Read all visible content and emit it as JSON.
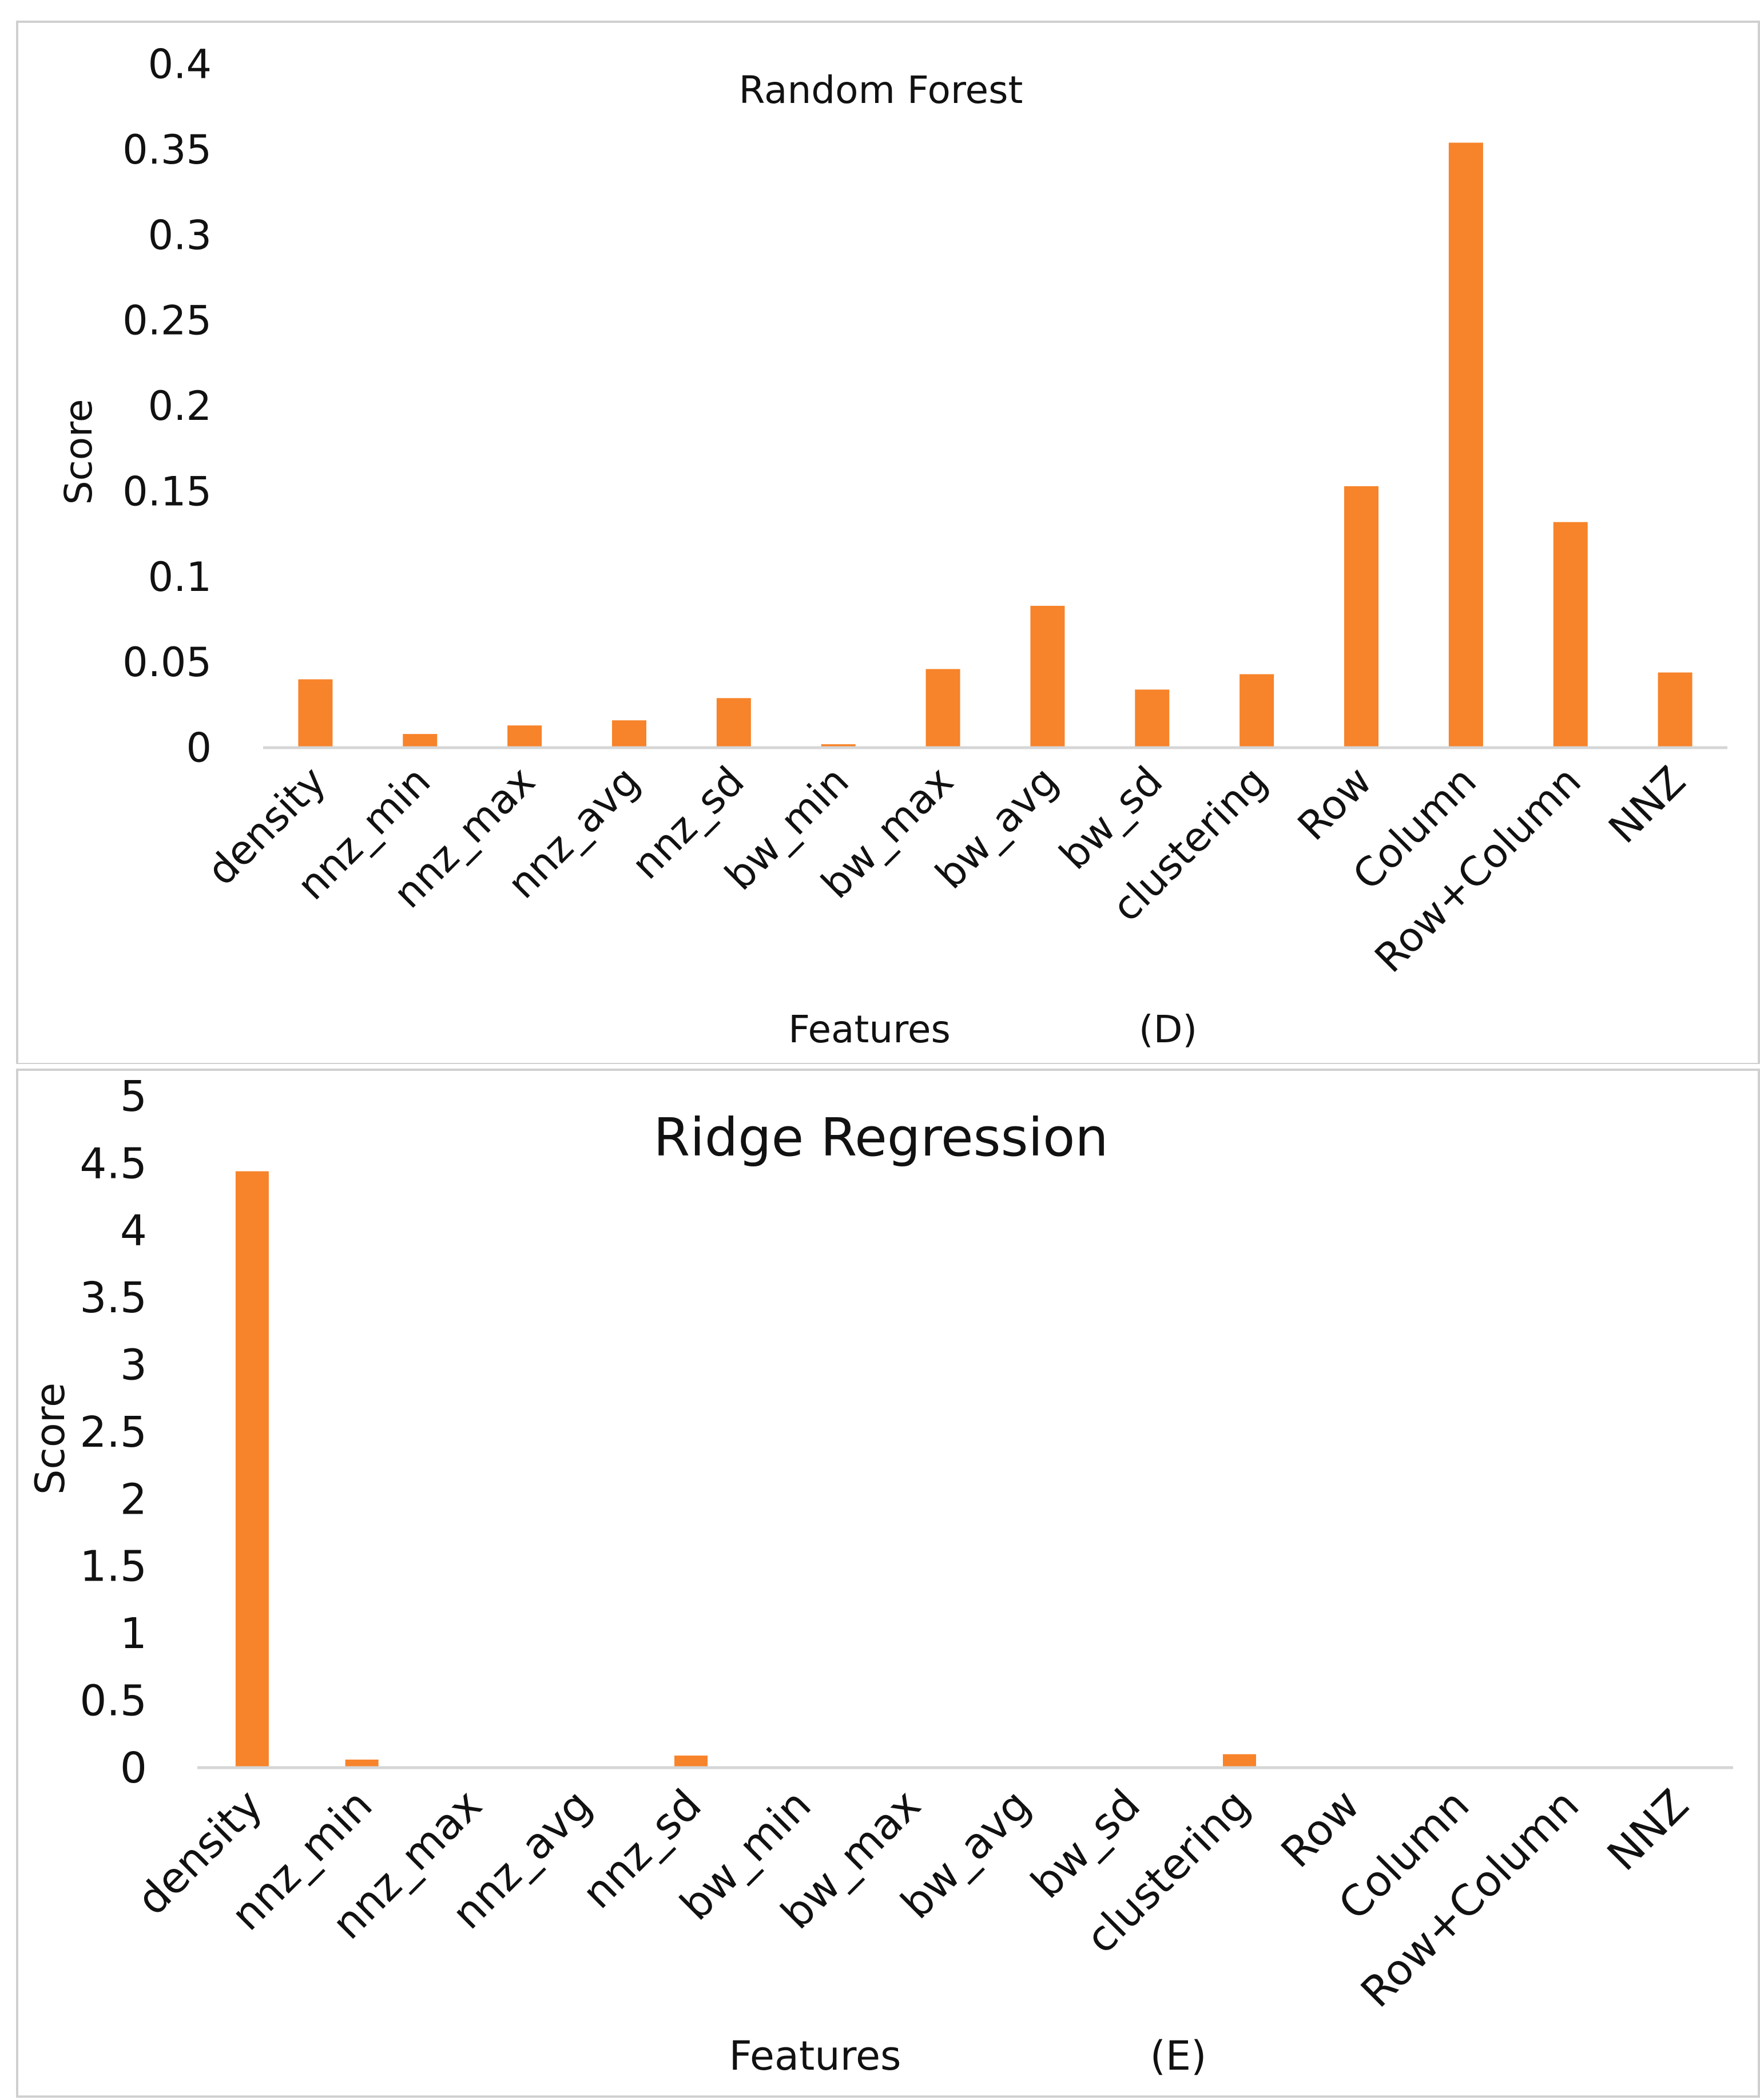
{
  "chart_data": [
    {
      "type": "bar",
      "title": "Random Forest",
      "panel_label": "(D)",
      "xlabel": "Features",
      "ylabel": "Score",
      "ylim": [
        0,
        0.4
      ],
      "yticks": [
        0,
        0.05,
        0.1,
        0.15,
        0.2,
        0.25,
        0.3,
        0.35,
        0.4
      ],
      "ytick_labels": [
        "0",
        "0.05",
        "0.1",
        "0.15",
        "0.2",
        "0.25",
        "0.3",
        "0.35",
        "0.4"
      ],
      "grid": false,
      "bar_color": "#f7832a",
      "categories": [
        "density",
        "nnz_min",
        "nnz_max",
        "nnz_avg",
        "nnz_sd",
        "bw_min",
        "bw_max",
        "bw_avg",
        "bw_sd",
        "clustering",
        "Row",
        "Column",
        "Row+Column",
        "NNZ"
      ],
      "values": [
        0.04,
        0.008,
        0.013,
        0.016,
        0.029,
        0.002,
        0.046,
        0.083,
        0.034,
        0.043,
        0.153,
        0.354,
        0.132,
        0.044
      ]
    },
    {
      "type": "bar",
      "title": "Ridge Regression",
      "panel_label": "(E)",
      "xlabel": "Features",
      "ylabel": "Score",
      "ylim": [
        0,
        5
      ],
      "yticks": [
        0,
        0.5,
        1,
        1.5,
        2,
        2.5,
        3,
        3.5,
        4,
        4.5,
        5
      ],
      "ytick_labels": [
        "0",
        "0.5",
        "1",
        "1.5",
        "2",
        "2.5",
        "3",
        "3.5",
        "4",
        "4.5",
        "5"
      ],
      "grid": false,
      "bar_color": "#f7832a",
      "categories": [
        "density",
        "nnz_min",
        "nnz_max",
        "nnz_avg",
        "nnz_sd",
        "bw_min",
        "bw_max",
        "bw_avg",
        "bw_sd",
        "clustering",
        "Row",
        "Column",
        "Row+Column",
        "NNZ"
      ],
      "values": [
        4.44,
        0.06,
        0.0,
        0.01,
        0.09,
        0.0,
        0.0,
        0.0,
        0.0,
        0.1,
        0.0,
        0.0,
        0.0,
        0.0
      ]
    }
  ]
}
